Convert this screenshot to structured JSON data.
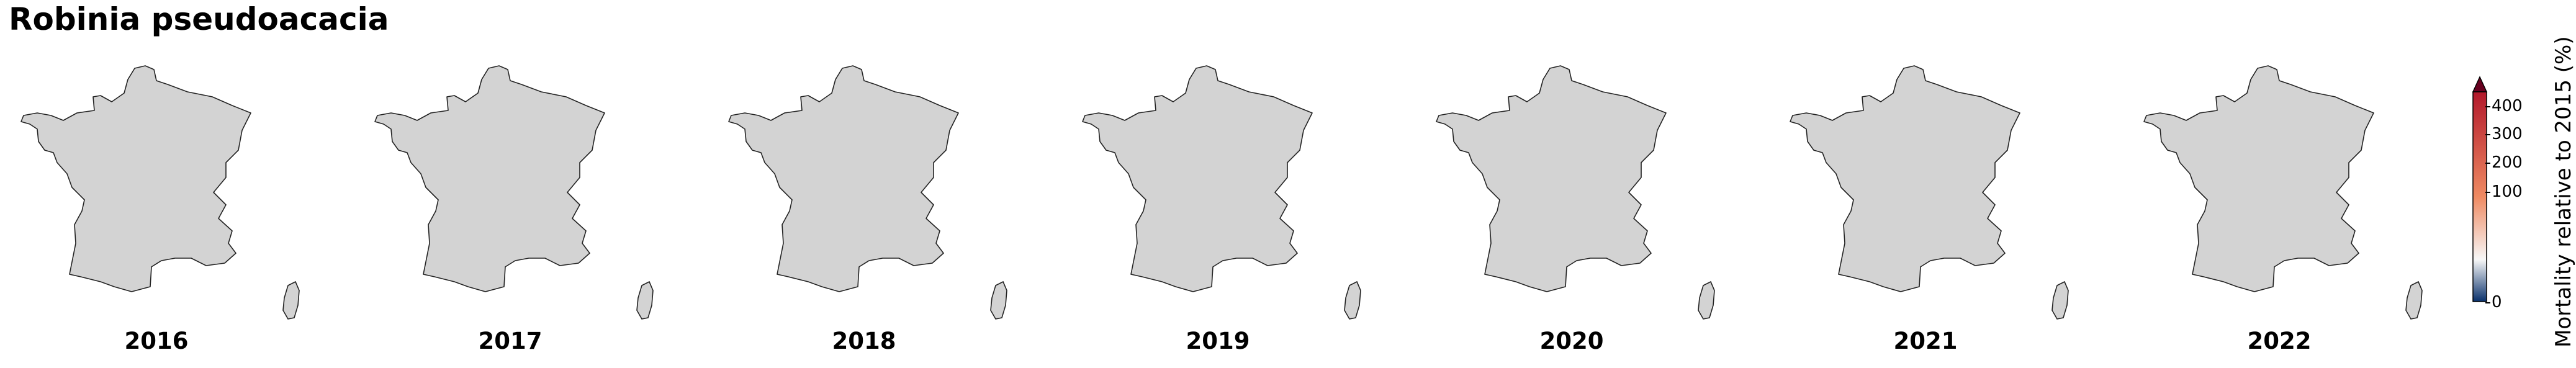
{
  "title": "Robinia pseudoacacia",
  "panels": [
    {
      "year": "2016"
    },
    {
      "year": "2017"
    },
    {
      "year": "2018"
    },
    {
      "year": "2019"
    },
    {
      "year": "2020"
    },
    {
      "year": "2021"
    },
    {
      "year": "2022"
    }
  ],
  "map": {
    "region_fill": "#d3d3d3",
    "border_color": "#222222"
  },
  "colorbar": {
    "label": "Mortality relative to 2015 (%)",
    "ticks": [
      "400",
      "300",
      "200",
      "100",
      "0"
    ],
    "colors": {
      "low": "#08306b",
      "mid": "#f7f7f7",
      "high": "#b2182b",
      "extend_max": "#67001f"
    }
  }
}
